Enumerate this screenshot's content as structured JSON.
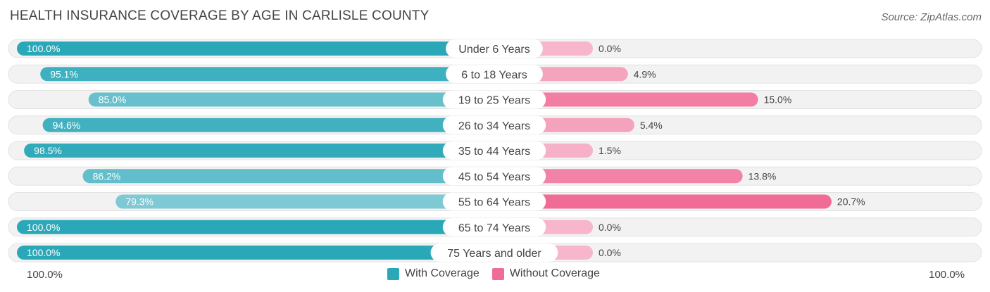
{
  "header": {
    "title": "HEALTH INSURANCE COVERAGE BY AGE IN CARLISLE COUNTY",
    "source": "Source: ZipAtlas.com"
  },
  "footer": {
    "left_axis_label": "100.0%",
    "right_axis_label": "100.0%"
  },
  "legend": {
    "with_coverage": "With Coverage",
    "without_coverage": "Without Coverage"
  },
  "colors": {
    "with_strong": "#2ba8b8",
    "with_light": "#8fd0da",
    "without_strong": "#f06b96",
    "without_light": "#f7b6cb",
    "track_bg": "#f2f2f2"
  },
  "chart_data": {
    "type": "bar",
    "orientation": "horizontal-diverging",
    "title": "HEALTH INSURANCE COVERAGE BY AGE IN CARLISLE COUNTY",
    "categories": [
      "Under 6 Years",
      "6 to 18 Years",
      "19 to 25 Years",
      "26 to 34 Years",
      "35 to 44 Years",
      "45 to 54 Years",
      "55 to 64 Years",
      "65 to 74 Years",
      "75 Years and older"
    ],
    "series": [
      {
        "name": "With Coverage",
        "values": [
          100.0,
          95.1,
          85.0,
          94.6,
          98.5,
          86.2,
          79.3,
          100.0,
          100.0
        ],
        "labels": [
          "100.0%",
          "95.1%",
          "85.0%",
          "94.6%",
          "98.5%",
          "86.2%",
          "79.3%",
          "100.0%",
          "100.0%"
        ]
      },
      {
        "name": "Without Coverage",
        "values": [
          0.0,
          4.9,
          15.0,
          5.4,
          1.5,
          13.8,
          20.7,
          0.0,
          0.0
        ],
        "labels": [
          "0.0%",
          "4.9%",
          "15.0%",
          "5.4%",
          "1.5%",
          "13.8%",
          "20.7%",
          "0.0%",
          "0.0%"
        ]
      }
    ],
    "xlim": [
      0,
      100
    ],
    "unit": "%",
    "legend": "bottom-center"
  }
}
